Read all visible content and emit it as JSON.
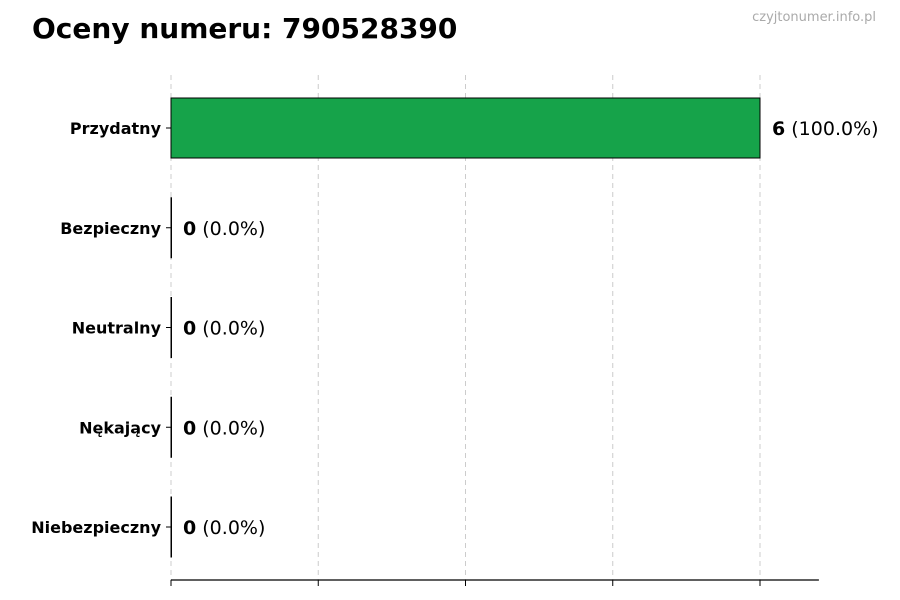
{
  "title": "Oceny numeru: 790528390",
  "watermark": "czyjtonumer.info.pl",
  "chart_data": {
    "type": "bar",
    "orientation": "horizontal",
    "title": "Oceny numeru: 790528390",
    "categories": [
      "Przydatny",
      "Bezpieczny",
      "Neutralny",
      "Nękający",
      "Niebezpieczny"
    ],
    "values": [
      6,
      0,
      0,
      0,
      0
    ],
    "percent_labels": [
      "(100.0%)",
      "(0.0%)",
      "(0.0%)",
      "(0.0%)",
      "(0.0%)"
    ],
    "colors": [
      "#16a34a",
      "#16a34a",
      "#16a34a",
      "#16a34a",
      "#16a34a"
    ],
    "xlim": [
      0,
      6.6
    ],
    "xticks": [
      0,
      1.5,
      3,
      4.5,
      6
    ],
    "xtick_labels_shown": false,
    "grid": "x dashed",
    "xlabel": "",
    "ylabel": ""
  }
}
